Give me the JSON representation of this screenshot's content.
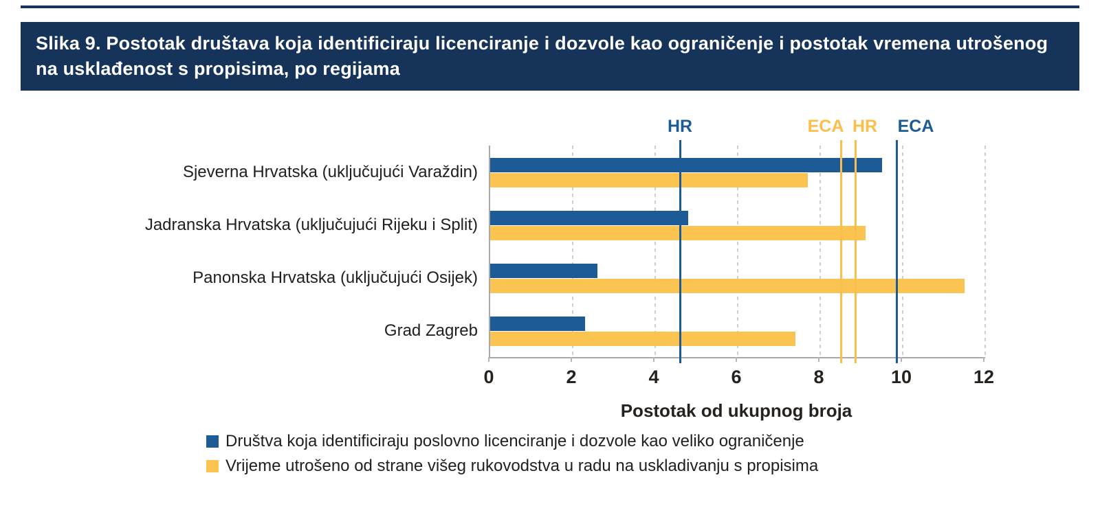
{
  "figure": {
    "title": "Slika 9. Postotak društava koja identificiraju licenciranje i dozvole kao ograničenje i postotak vremena utrošenog na usklađenost s propisima, po regijama"
  },
  "colors": {
    "header_bg": "#16335a",
    "series_blue": "#1d5b96",
    "series_yellow": "#fbc34f",
    "ref_blue": "#1d5b96",
    "ref_yellow": "#fbbe4b",
    "grid": "#cbcfd3",
    "axis": "#a6aaae",
    "text": "#1f1f1f"
  },
  "chart_data": {
    "type": "bar",
    "orientation": "horizontal",
    "title": "",
    "xlabel": "Postotak od ukupnog broja",
    "ylabel": "",
    "xlim": [
      0,
      12
    ],
    "xticks": [
      0,
      2,
      4,
      6,
      8,
      10,
      12
    ],
    "grid": true,
    "legend_position": "bottom",
    "categories": [
      "Sjeverna Hrvatska (uključujući Varaždin)",
      "Jadranska Hrvatska (uključujući Rijeku i Split)",
      "Panonska Hrvatska (uključujući Osijek)",
      "Grad Zagreb"
    ],
    "series": [
      {
        "name": "Društva koja identificiraju poslovno licenciranje i dozvole kao veliko ograničenje",
        "color": "#1d5b96",
        "values": [
          9.5,
          4.8,
          2.6,
          2.3
        ]
      },
      {
        "name": "Vrijeme utrošeno od strane višeg rukovodstva u radu na uskladivanju s propisima",
        "color": "#fbc34f",
        "values": [
          7.7,
          9.1,
          11.5,
          7.4
        ]
      }
    ],
    "reference_lines": [
      {
        "label": "HR",
        "value": 4.6,
        "color": "#1d5b96",
        "label_dx": 0
      },
      {
        "label": "ECA",
        "value": 8.5,
        "color": "#fbbe4b",
        "label_dx": -22
      },
      {
        "label": "HR",
        "value": 8.85,
        "color": "#fbbe4b",
        "label_dx": 14
      },
      {
        "label": "ECA",
        "value": 9.85,
        "color": "#1d5b96",
        "label_dx": 28
      }
    ]
  }
}
